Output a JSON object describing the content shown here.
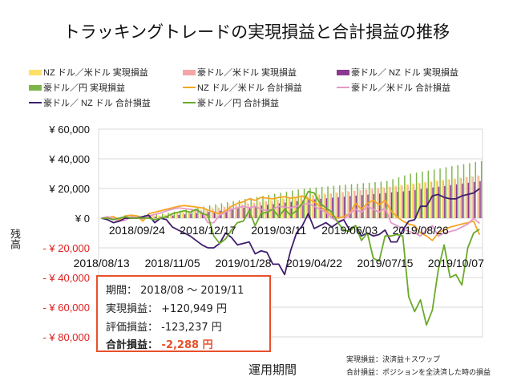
{
  "chart_data": {
    "type": "bar+line",
    "title": "トラッキングトレードの実現損益と合計損益の推移",
    "xlabel": "運用期間",
    "ylabel": "残高",
    "ylim": [
      -80000,
      60000
    ],
    "yticks": [
      60000,
      40000,
      20000,
      0,
      -20000,
      -40000,
      -60000,
      -80000
    ],
    "ytick_labels": [
      "¥ 60,000",
      "¥ 40,000",
      "¥ 20,000",
      "¥ 0",
      "- ¥ 20,000",
      "- ¥ 40,000",
      "- ¥ 60,000",
      "- ¥ 80,000"
    ],
    "xtick_labels": [
      "2018/08/13",
      "2018/09/24",
      "2018/11/05",
      "2018/12/17",
      "2019/01/28",
      "2019/03/11",
      "2019/04/22",
      "2019/06/03",
      "2019/07/15",
      "2019/08/26",
      "2019/10/07"
    ],
    "grid": true,
    "legend_placement": "top",
    "bar_series": [
      {
        "name": "NZ ドル／米ドル 実現損益",
        "color": "#FFE066",
        "values": [
          0,
          200,
          400,
          600,
          800,
          1000,
          1200,
          1400,
          1600,
          1800,
          2000,
          2600,
          3200,
          3800,
          4400,
          5000,
          5600,
          6200,
          6800,
          7400,
          8000,
          8500,
          9000,
          9500,
          10000,
          10500,
          11000,
          11500,
          12000,
          12500,
          13000,
          13500,
          14000,
          14500,
          15000,
          15400,
          15900,
          16300,
          16700,
          17100,
          17600,
          18000,
          18400,
          18900,
          19300,
          19700,
          20100,
          20600,
          21000,
          21500,
          22000,
          22500,
          23000,
          23500,
          24000,
          24500,
          25000,
          25500,
          26000,
          26500,
          27000,
          27500,
          28000,
          28500,
          29000
        ]
      },
      {
        "name": "豪ドル／米ドル 実現損益",
        "color": "#F4A6A6",
        "values": [
          0,
          150,
          300,
          450,
          600,
          750,
          900,
          1050,
          1200,
          1350,
          1500,
          2050,
          2600,
          3150,
          3700,
          4250,
          4800,
          5350,
          5900,
          6450,
          7000,
          7500,
          8100,
          8600,
          9100,
          9700,
          10200,
          10800,
          11300,
          11800,
          12400,
          12900,
          13400,
          14000,
          14500,
          14900,
          15400,
          15800,
          16200,
          16600,
          17100,
          17500,
          17900,
          18400,
          18800,
          19200,
          19600,
          20100,
          20500,
          21000,
          21500,
          22000,
          22500,
          23000,
          23500,
          24000,
          24500,
          25000,
          25500,
          26000,
          26500,
          27000,
          27500,
          28000,
          28500
        ]
      },
      {
        "name": "豪ドル／ NZ ドル 実現損益",
        "color": "#8B3A8F",
        "values": [
          0,
          100,
          200,
          300,
          400,
          500,
          600,
          700,
          800,
          900,
          1000,
          1400,
          1800,
          2200,
          2600,
          3000,
          3400,
          3800,
          4200,
          4600,
          5000,
          5500,
          6000,
          6500,
          7000,
          7500,
          8000,
          8500,
          9000,
          9500,
          10000,
          10500,
          11000,
          11500,
          12000,
          12400,
          12700,
          13100,
          13400,
          13800,
          14100,
          14500,
          14900,
          15200,
          15600,
          15900,
          16300,
          16600,
          17000,
          17400,
          17800,
          18100,
          18500,
          19000,
          19600,
          20100,
          20700,
          21200,
          21700,
          22300,
          22800,
          23300,
          23900,
          24400,
          24949
        ]
      },
      {
        "name": "豪ドル／円 実現損益",
        "color": "#7DB54A",
        "values": [
          0,
          300,
          600,
          900,
          1200,
          1500,
          1800,
          2100,
          2400,
          2700,
          3000,
          3700,
          4400,
          5100,
          5800,
          6500,
          7200,
          7900,
          8600,
          9300,
          10000,
          10700,
          11400,
          12100,
          12900,
          13600,
          14300,
          15000,
          15700,
          16400,
          17100,
          17900,
          18600,
          19300,
          20000,
          20400,
          20700,
          21100,
          21400,
          21800,
          22100,
          22500,
          22900,
          23200,
          23600,
          23900,
          24300,
          24600,
          25000,
          26300,
          27500,
          28800,
          30000,
          30700,
          31400,
          32100,
          32800,
          33500,
          34300,
          35000,
          35700,
          36400,
          37100,
          37800,
          38500
        ]
      }
    ],
    "line_series": [
      {
        "name": "NZ ドル／米ドル 合計損益",
        "color": "#F5A623",
        "values": [
          0,
          500,
          1000,
          -1000,
          1500,
          2000,
          1500,
          -2000,
          3000,
          4000,
          5000,
          6000,
          7000,
          8000,
          8500,
          8000,
          7500,
          7000,
          5500,
          4000,
          3000,
          5000,
          8000,
          10000,
          11000,
          13000,
          12000,
          14000,
          13500,
          13000,
          14000,
          14500,
          13500,
          14000,
          15000,
          13000,
          11000,
          8000,
          5000,
          2000,
          0,
          1000,
          3000,
          10000,
          6000,
          10000,
          12000,
          9000,
          12000,
          5000,
          1000,
          -2000,
          -4000,
          -5000,
          -10000,
          -12000,
          -15000,
          -10000,
          -8000,
          -6000,
          -5000,
          -4000,
          -3000,
          -2000,
          -11200
        ]
      },
      {
        "name": "豪ドル／米ドル 合計損益",
        "color": "#E49AC8",
        "values": [
          0,
          1000,
          -500,
          -2000,
          -1500,
          1000,
          500,
          -500,
          1500,
          2500,
          3500,
          5000,
          6000,
          7000,
          6500,
          6000,
          5000,
          4000,
          -3000,
          -3000,
          2000,
          4000,
          6000,
          7000,
          8000,
          7000,
          8000,
          6000,
          5000,
          6000,
          8000,
          7500,
          7000,
          8000,
          9000,
          10000,
          8000,
          6000,
          4000,
          0,
          -2000,
          -1000,
          3000,
          6000,
          4000,
          8000,
          6000,
          4000,
          7000,
          -3000,
          -5000,
          -7000,
          -9000,
          -10000,
          -12000,
          -8000,
          -5000,
          -12000,
          -10000,
          -9000,
          -8000,
          -6000,
          -4000,
          0,
          -3488
        ]
      },
      {
        "name": "豪ドル／ NZ ドル 合計損益",
        "color": "#3F1F6E",
        "values": [
          0,
          -1000,
          -3000,
          -2000,
          0,
          0,
          0,
          1000,
          2000,
          -3000,
          0,
          -1000,
          -6000,
          -8000,
          -10000,
          -12000,
          -15000,
          -18000,
          -20000,
          -20000,
          -17000,
          -10000,
          -13000,
          -18000,
          -17000,
          -16000,
          -24000,
          -22000,
          -23000,
          -31000,
          -31000,
          -38000,
          -22000,
          -10000,
          -5000,
          3000,
          -7000,
          -5000,
          -3000,
          -6000,
          -3000,
          -1000,
          -8000,
          -5000,
          -12000,
          -10000,
          -12000,
          -11000,
          -8000,
          -16000,
          -16000,
          -8000,
          -2000,
          -1000,
          8000,
          8000,
          15000,
          16000,
          14000,
          13000,
          13000,
          15000,
          16000,
          17000,
          19900
        ]
      },
      {
        "name": "豪ドル／円 合計損益",
        "color": "#6AAA2A",
        "values": [
          0,
          0,
          -1000,
          0,
          1000,
          0,
          0,
          0,
          0,
          -1000,
          0,
          1000,
          3000,
          4000,
          5000,
          4000,
          6000,
          3000,
          2000,
          -12000,
          -17000,
          -14000,
          -8000,
          -3000,
          -2000,
          5000,
          -5000,
          3000,
          4000,
          6000,
          1000,
          6000,
          2000,
          5000,
          10000,
          18000,
          17000,
          10000,
          7000,
          4000,
          -3000,
          -8000,
          -9000,
          -5000,
          -15000,
          -10000,
          -27000,
          -29000,
          -12000,
          -12000,
          -11000,
          -12000,
          -53000,
          -63000,
          -55000,
          -72000,
          -62000,
          -35000,
          -18000,
          -40000,
          -38000,
          -45000,
          -20000,
          -10000,
          -7500
        ]
      }
    ]
  },
  "summary": {
    "period_label": "期間：",
    "period_value": "2018/08 ～ 2019/11",
    "realized_label": "実現損益：",
    "realized_value": "+120,949 円",
    "unrealized_label": "評価損益：",
    "unrealized_value": "-123,237 円",
    "total_label": "合計損益：",
    "total_value": "-2,288 円",
    "total_color": "#E8502A"
  },
  "notes": [
    "実現損益：決済益＋スワップ",
    "合計損益：ポジションを全決済した時の損益"
  ],
  "negative_label_color": "#E02020"
}
